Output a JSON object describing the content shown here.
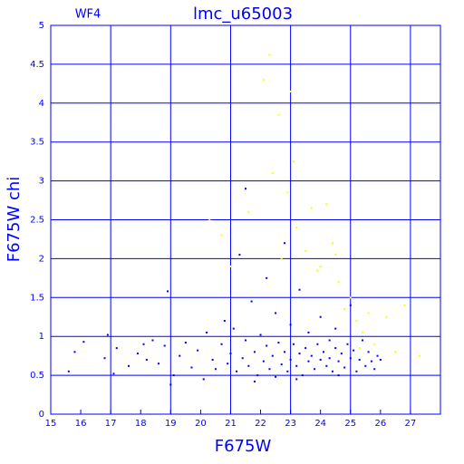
{
  "chart_data": {
    "type": "scatter",
    "title": "lmc_u65003",
    "annotation": "WF4",
    "x_label": "F675W",
    "y_label": "F675W chi",
    "xlim": [
      15,
      28
    ],
    "ylim": [
      0,
      5
    ],
    "xticks": [
      15,
      16,
      17,
      18,
      19,
      20,
      21,
      22,
      23,
      24,
      25,
      26,
      27
    ],
    "yticks": [
      0,
      0.5,
      1,
      1.5,
      2,
      2.5,
      3,
      3.5,
      4,
      4.5,
      5
    ],
    "grid": true,
    "series": [
      {
        "color": "#0000ff",
        "x": [
          15.6,
          15.8,
          16.1,
          16.8,
          17.1,
          17.2,
          17.6,
          17.9,
          18.2,
          18.4,
          18.6,
          18.8,
          18.9,
          19.1,
          19.3,
          19.5,
          19.7,
          19.9,
          20.1,
          20.2,
          20.4,
          20.5,
          20.7,
          20.8,
          20.9,
          21.0,
          21.1,
          21.2,
          21.3,
          21.4,
          21.5,
          21.5,
          21.6,
          21.7,
          21.8,
          21.9,
          22.0,
          22.1,
          22.2,
          22.2,
          22.3,
          22.4,
          22.5,
          22.6,
          22.7,
          22.8,
          22.8,
          22.9,
          23.0,
          23.0,
          23.1,
          23.2,
          23.3,
          23.3,
          23.4,
          23.5,
          23.6,
          23.6,
          23.7,
          23.8,
          23.9,
          24.0,
          24.0,
          24.1,
          24.2,
          24.3,
          24.3,
          24.4,
          24.5,
          24.5,
          24.6,
          24.7,
          24.8,
          24.9,
          25.0,
          25.0,
          25.1,
          25.2,
          25.3,
          25.4,
          25.5,
          25.6,
          25.7,
          25.8,
          25.9,
          26.0,
          21.8,
          22.5,
          23.2,
          24.6,
          19.0,
          18.1,
          16.9
        ],
        "values": [
          0.55,
          0.8,
          0.93,
          0.72,
          0.52,
          0.85,
          0.62,
          0.78,
          0.7,
          0.95,
          0.65,
          0.88,
          1.58,
          0.5,
          0.75,
          0.92,
          0.6,
          0.82,
          0.45,
          1.05,
          0.7,
          0.58,
          0.9,
          1.2,
          0.65,
          0.78,
          1.1,
          0.55,
          2.05,
          0.72,
          0.95,
          2.9,
          0.62,
          1.45,
          0.8,
          0.5,
          1.02,
          0.68,
          0.88,
          1.75,
          0.58,
          0.75,
          1.3,
          0.92,
          0.64,
          0.8,
          2.2,
          0.55,
          0.7,
          1.15,
          0.9,
          0.62,
          0.78,
          1.6,
          0.5,
          0.85,
          0.68,
          1.05,
          0.75,
          0.58,
          0.9,
          0.7,
          1.25,
          0.8,
          0.62,
          0.95,
          0.72,
          0.55,
          0.85,
          1.1,
          0.68,
          0.78,
          0.6,
          0.9,
          0.72,
          1.4,
          0.82,
          0.55,
          0.7,
          0.95,
          0.62,
          0.8,
          0.68,
          0.58,
          0.75,
          0.7,
          0.42,
          0.48,
          0.45,
          0.5,
          0.38,
          0.9,
          1.02
        ]
      },
      {
        "color": "#ffff00",
        "x": [
          20.3,
          20.7,
          21.0,
          21.6,
          22.1,
          22.3,
          22.6,
          22.4,
          22.9,
          23.0,
          23.1,
          23.2,
          23.5,
          23.7,
          23.9,
          24.2,
          24.4,
          24.6,
          24.8,
          25.0,
          25.2,
          25.4,
          25.6,
          25.8,
          26.2,
          26.5,
          26.8,
          27.3,
          24.0,
          22.7,
          24.5,
          25.3
        ],
        "values": [
          2.5,
          2.3,
          1.9,
          2.6,
          4.3,
          4.62,
          3.85,
          3.1,
          2.85,
          4.15,
          3.25,
          2.4,
          2.1,
          2.65,
          1.85,
          2.7,
          2.2,
          1.7,
          1.35,
          1.5,
          1.2,
          1.05,
          1.3,
          0.9,
          1.25,
          0.8,
          1.4,
          0.75,
          1.9,
          2.0,
          2.05,
          0.85
        ]
      }
    ]
  }
}
